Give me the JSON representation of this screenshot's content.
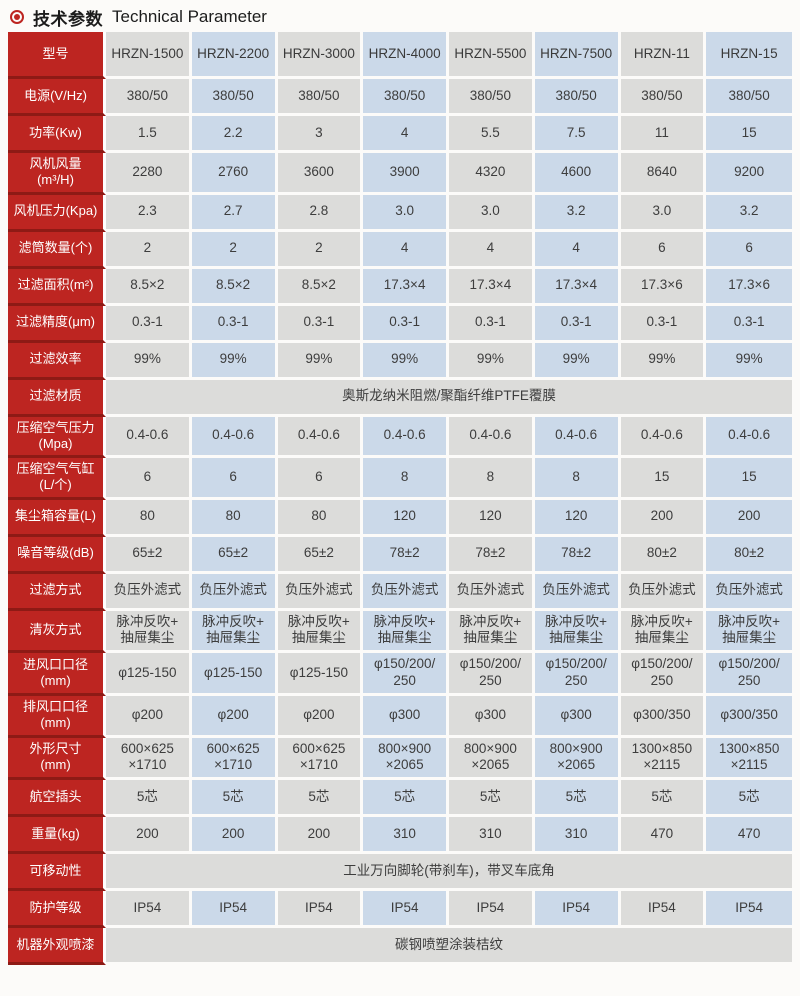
{
  "page": {
    "title_zh": "技术参数",
    "title_en": "Technical Parameter",
    "bullet_icon": "red-ring-dot",
    "colors": {
      "red": "#bd2521",
      "red_dark": "#8e1a15",
      "cell_gray": "#dcdcda",
      "cell_blue": "#cbd9e9",
      "text": "#3d3d3d"
    }
  },
  "table": {
    "row_header": "型号",
    "models": [
      "HRZN-1500",
      "HRZN-2200",
      "HRZN-3000",
      "HRZN-4000",
      "HRZN-5500",
      "HRZN-7500",
      "HRZN-11",
      "HRZN-15"
    ],
    "rows": [
      {
        "label": "电源(V/Hz)",
        "values": [
          "380/50",
          "380/50",
          "380/50",
          "380/50",
          "380/50",
          "380/50",
          "380/50",
          "380/50"
        ]
      },
      {
        "label": "功率(Kw)",
        "values": [
          "1.5",
          "2.2",
          "3",
          "4",
          "5.5",
          "7.5",
          "11",
          "15"
        ]
      },
      {
        "label": "风机风量\n(m³/H)",
        "values": [
          "2280",
          "2760",
          "3600",
          "3900",
          "4320",
          "4600",
          "8640",
          "9200"
        ]
      },
      {
        "label": "风机压力(Kpa)",
        "values": [
          "2.3",
          "2.7",
          "2.8",
          "3.0",
          "3.0",
          "3.2",
          "3.0",
          "3.2"
        ]
      },
      {
        "label": "滤筒数量(个)",
        "values": [
          "2",
          "2",
          "2",
          "4",
          "4",
          "4",
          "6",
          "6"
        ]
      },
      {
        "label": "过滤面积(m²)",
        "values": [
          "8.5×2",
          "8.5×2",
          "8.5×2",
          "17.3×4",
          "17.3×4",
          "17.3×4",
          "17.3×6",
          "17.3×6"
        ]
      },
      {
        "label": "过滤精度(μm)",
        "values": [
          "0.3-1",
          "0.3-1",
          "0.3-1",
          "0.3-1",
          "0.3-1",
          "0.3-1",
          "0.3-1",
          "0.3-1"
        ]
      },
      {
        "label": "过滤效率",
        "values": [
          "99%",
          "99%",
          "99%",
          "99%",
          "99%",
          "99%",
          "99%",
          "99%"
        ]
      },
      {
        "label": "过滤材质",
        "span": "奥斯龙纳米阻燃/聚酯纤维PTFE覆膜"
      },
      {
        "label": "压缩空气压力\n(Mpa)",
        "values": [
          "0.4-0.6",
          "0.4-0.6",
          "0.4-0.6",
          "0.4-0.6",
          "0.4-0.6",
          "0.4-0.6",
          "0.4-0.6",
          "0.4-0.6"
        ]
      },
      {
        "label": "压缩空气气缸\n(L/个)",
        "values": [
          "6",
          "6",
          "6",
          "8",
          "8",
          "8",
          "15",
          "15"
        ]
      },
      {
        "label": "集尘箱容量(L)",
        "values": [
          "80",
          "80",
          "80",
          "120",
          "120",
          "120",
          "200",
          "200"
        ]
      },
      {
        "label": "噪音等级(dB)",
        "values": [
          "65±2",
          "65±2",
          "65±2",
          "78±2",
          "78±2",
          "78±2",
          "80±2",
          "80±2"
        ]
      },
      {
        "label": "过滤方式",
        "values": [
          "负压外滤式",
          "负压外滤式",
          "负压外滤式",
          "负压外滤式",
          "负压外滤式",
          "负压外滤式",
          "负压外滤式",
          "负压外滤式"
        ]
      },
      {
        "label": "清灰方式",
        "values": [
          "脉冲反吹+\n抽屉集尘",
          "脉冲反吹+\n抽屉集尘",
          "脉冲反吹+\n抽屉集尘",
          "脉冲反吹+\n抽屉集尘",
          "脉冲反吹+\n抽屉集尘",
          "脉冲反吹+\n抽屉集尘",
          "脉冲反吹+\n抽屉集尘",
          "脉冲反吹+\n抽屉集尘"
        ]
      },
      {
        "label": "进风口口径\n(mm)",
        "values": [
          "φ125-150",
          "φ125-150",
          "φ125-150",
          "φ150/200/\n250",
          "φ150/200/\n250",
          "φ150/200/\n250",
          "φ150/200/\n250",
          "φ150/200/\n250"
        ]
      },
      {
        "label": "排风口口径\n(mm)",
        "values": [
          "φ200",
          "φ200",
          "φ200",
          "φ300",
          "φ300",
          "φ300",
          "φ300/350",
          "φ300/350"
        ]
      },
      {
        "label": "外形尺寸\n(mm)",
        "values": [
          "600×625\n×1710",
          "600×625\n×1710",
          "600×625\n×1710",
          "800×900\n×2065",
          "800×900\n×2065",
          "800×900\n×2065",
          "1300×850\n×2115",
          "1300×850\n×2115"
        ]
      },
      {
        "label": "航空插头",
        "values": [
          "5芯",
          "5芯",
          "5芯",
          "5芯",
          "5芯",
          "5芯",
          "5芯",
          "5芯"
        ]
      },
      {
        "label": "重量(kg)",
        "values": [
          "200",
          "200",
          "200",
          "310",
          "310",
          "310",
          "470",
          "470"
        ]
      },
      {
        "label": "可移动性",
        "span": "工业万向脚轮(带刹车)，带叉车底角"
      },
      {
        "label": "防护等级",
        "values": [
          "IP54",
          "IP54",
          "IP54",
          "IP54",
          "IP54",
          "IP54",
          "IP54",
          "IP54"
        ]
      },
      {
        "label": "机器外观喷漆",
        "span": "碳钢喷塑涂装桔纹"
      }
    ]
  }
}
